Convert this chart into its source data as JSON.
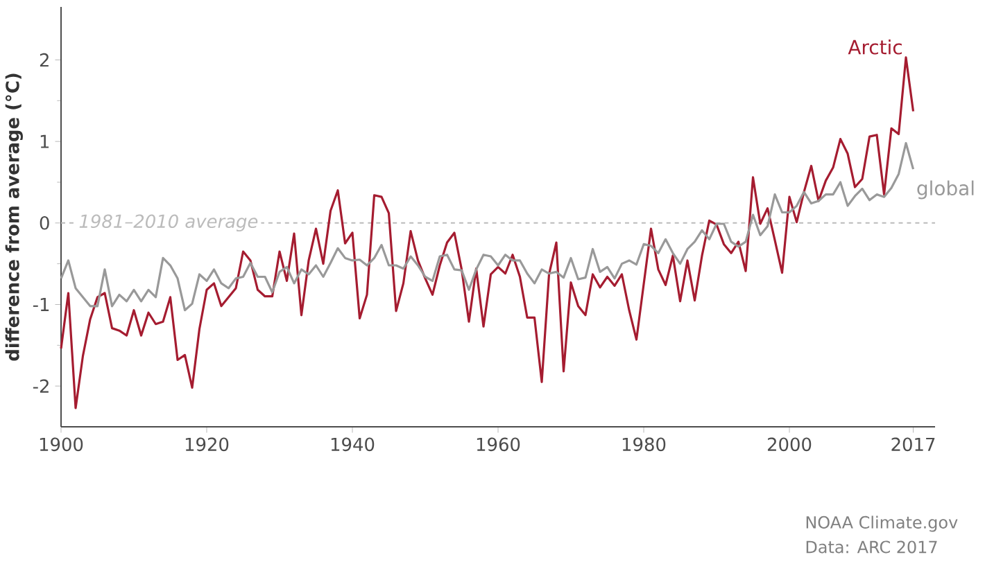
{
  "chart_data": {
    "type": "line",
    "ylabel": "difference from average (°C)",
    "xlim": [
      1900,
      2020
    ],
    "ylim": [
      -2.5,
      2.65
    ],
    "xticks": [
      1900,
      1920,
      1940,
      1960,
      1980,
      2000,
      2017
    ],
    "yticks": [
      -2,
      -1,
      0,
      1,
      2
    ],
    "grid": false,
    "line_style": "solid",
    "marker": "none",
    "ref_lines": [
      {
        "axis": "y",
        "value": 0,
        "label": "1981–2010 average",
        "color": "#bbbbbb",
        "line_style": "dashed"
      }
    ],
    "annotations": [
      "NOAA Climate.gov",
      "Data: ARC 2017"
    ],
    "series": [
      {
        "name": "Arctic",
        "color": "#a51c30",
        "x": [
          1900,
          1901,
          1902,
          1903,
          1904,
          1905,
          1906,
          1907,
          1908,
          1909,
          1910,
          1911,
          1912,
          1913,
          1914,
          1915,
          1916,
          1917,
          1918,
          1919,
          1920,
          1921,
          1922,
          1923,
          1924,
          1925,
          1926,
          1927,
          1928,
          1929,
          1930,
          1931,
          1932,
          1933,
          1934,
          1935,
          1936,
          1937,
          1938,
          1939,
          1940,
          1941,
          1942,
          1943,
          1944,
          1945,
          1946,
          1947,
          1948,
          1949,
          1950,
          1951,
          1952,
          1953,
          1954,
          1955,
          1956,
          1957,
          1958,
          1959,
          1960,
          1961,
          1962,
          1963,
          1964,
          1965,
          1966,
          1967,
          1968,
          1969,
          1970,
          1971,
          1972,
          1973,
          1974,
          1975,
          1976,
          1977,
          1978,
          1979,
          1981,
          1982,
          1983,
          1984,
          1985,
          1986,
          1987,
          1988,
          1989,
          1990,
          1991,
          1992,
          1993,
          1994,
          1995,
          1996,
          1997,
          1998,
          1999,
          2000,
          2001,
          2002,
          2003,
          2004,
          2005,
          2006,
          2007,
          2008,
          2009,
          2010,
          2011,
          2012,
          2013,
          2014,
          2015,
          2016,
          2017
        ],
        "values": [
          -1.54,
          -0.86,
          -2.27,
          -1.63,
          -1.18,
          -0.91,
          -0.86,
          -1.29,
          -1.32,
          -1.38,
          -1.07,
          -1.38,
          -1.1,
          -1.24,
          -1.21,
          -0.91,
          -1.68,
          -1.62,
          -2.02,
          -1.3,
          -0.82,
          -0.74,
          -1.02,
          -0.91,
          -0.8,
          -0.35,
          -0.46,
          -0.82,
          -0.9,
          -0.9,
          -0.35,
          -0.71,
          -0.13,
          -1.13,
          -0.46,
          -0.07,
          -0.5,
          0.15,
          0.4,
          -0.25,
          -0.12,
          -1.17,
          -0.88,
          0.34,
          0.32,
          0.12,
          -1.08,
          -0.74,
          -0.1,
          -0.46,
          -0.68,
          -0.88,
          -0.52,
          -0.24,
          -0.12,
          -0.57,
          -1.21,
          -0.56,
          -1.27,
          -0.63,
          -0.54,
          -0.62,
          -0.39,
          -0.66,
          -1.16,
          -1.16,
          -1.95,
          -0.63,
          -0.24,
          -1.82,
          -0.73,
          -1.02,
          -1.13,
          -0.63,
          -0.79,
          -0.66,
          -0.77,
          -0.63,
          -1.07,
          -1.43,
          -0.07,
          -0.57,
          -0.76,
          -0.4,
          -0.96,
          -0.46,
          -0.95,
          -0.4,
          0.03,
          -0.02,
          -0.26,
          -0.37,
          -0.23,
          -0.59,
          0.56,
          -0.01,
          0.18,
          -0.21,
          -0.61,
          0.32,
          0.01,
          0.38,
          0.7,
          0.27,
          0.52,
          0.68,
          1.03,
          0.85,
          0.44,
          0.54,
          1.06,
          1.08,
          0.35,
          1.16,
          1.09,
          2.03,
          1.37
        ]
      },
      {
        "name": "global",
        "color": "#999999",
        "x": [
          1900,
          1901,
          1902,
          1903,
          1904,
          1905,
          1906,
          1907,
          1908,
          1909,
          1910,
          1911,
          1912,
          1913,
          1914,
          1915,
          1916,
          1917,
          1918,
          1919,
          1920,
          1921,
          1922,
          1923,
          1924,
          1925,
          1926,
          1927,
          1928,
          1929,
          1930,
          1931,
          1932,
          1933,
          1934,
          1935,
          1936,
          1937,
          1938,
          1939,
          1940,
          1941,
          1942,
          1943,
          1944,
          1945,
          1946,
          1947,
          1948,
          1949,
          1950,
          1951,
          1952,
          1953,
          1954,
          1955,
          1956,
          1957,
          1958,
          1959,
          1960,
          1961,
          1962,
          1963,
          1964,
          1965,
          1966,
          1967,
          1968,
          1969,
          1970,
          1971,
          1972,
          1973,
          1974,
          1975,
          1976,
          1977,
          1978,
          1979,
          1980,
          1981,
          1982,
          1983,
          1984,
          1985,
          1986,
          1987,
          1988,
          1989,
          1990,
          1991,
          1992,
          1993,
          1994,
          1995,
          1996,
          1997,
          1998,
          1999,
          2000,
          2001,
          2002,
          2003,
          2004,
          2005,
          2006,
          2007,
          2008,
          2009,
          2010,
          2011,
          2012,
          2013,
          2014,
          2015,
          2016,
          2017
        ],
        "values": [
          -0.68,
          -0.46,
          -0.8,
          -0.91,
          -1.02,
          -1.02,
          -0.57,
          -1.02,
          -0.88,
          -0.96,
          -0.82,
          -0.96,
          -0.82,
          -0.91,
          -0.43,
          -0.52,
          -0.68,
          -1.07,
          -0.99,
          -0.63,
          -0.71,
          -0.57,
          -0.74,
          -0.8,
          -0.68,
          -0.66,
          -0.49,
          -0.66,
          -0.66,
          -0.85,
          -0.6,
          -0.54,
          -0.74,
          -0.57,
          -0.63,
          -0.52,
          -0.66,
          -0.49,
          -0.31,
          -0.43,
          -0.46,
          -0.45,
          -0.52,
          -0.43,
          -0.27,
          -0.52,
          -0.52,
          -0.56,
          -0.41,
          -0.52,
          -0.66,
          -0.71,
          -0.41,
          -0.39,
          -0.57,
          -0.58,
          -0.82,
          -0.57,
          -0.39,
          -0.41,
          -0.52,
          -0.39,
          -0.46,
          -0.46,
          -0.62,
          -0.74,
          -0.57,
          -0.62,
          -0.6,
          -0.67,
          -0.43,
          -0.69,
          -0.67,
          -0.32,
          -0.6,
          -0.54,
          -0.68,
          -0.5,
          -0.46,
          -0.51,
          -0.26,
          -0.28,
          -0.37,
          -0.2,
          -0.37,
          -0.5,
          -0.32,
          -0.23,
          -0.09,
          -0.2,
          -0.01,
          -0.01,
          -0.23,
          -0.29,
          -0.23,
          0.1,
          -0.15,
          -0.04,
          0.35,
          0.13,
          0.13,
          0.21,
          0.38,
          0.24,
          0.27,
          0.35,
          0.35,
          0.5,
          0.21,
          0.33,
          0.42,
          0.28,
          0.35,
          0.32,
          0.43,
          0.6,
          0.98,
          0.66
        ]
      }
    ]
  }
}
